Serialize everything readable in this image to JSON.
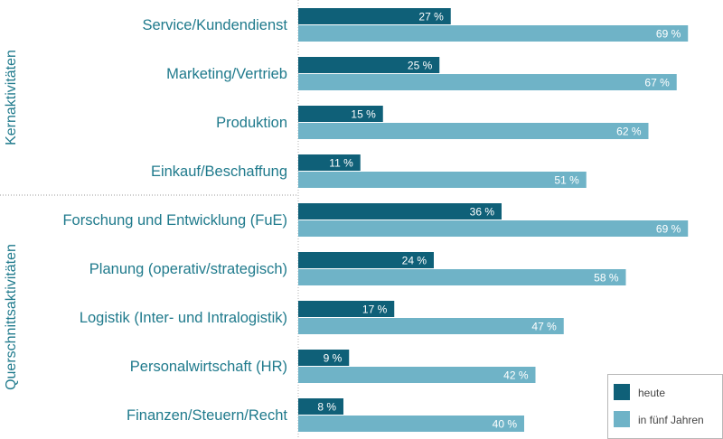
{
  "chart_data": {
    "type": "bar",
    "orientation": "horizontal",
    "groups": [
      {
        "label": "Kernaktivitäten",
        "categories": [
          "Service/Kundendienst",
          "Marketing/Vertrieb",
          "Produktion",
          "Einkauf/Beschaffung"
        ]
      },
      {
        "label": "Querschnittsaktivitäten",
        "categories": [
          "Forschung und Entwicklung (FuE)",
          "Planung (operativ/strategisch)",
          "Logistik (Inter- und Intralogistik)",
          "Personalwirtschaft (HR)",
          "Finanzen/Steuern/Recht"
        ]
      }
    ],
    "categories": [
      "Service/Kundendienst",
      "Marketing/Vertrieb",
      "Produktion",
      "Einkauf/Beschaffung",
      "Forschung und Entwicklung (FuE)",
      "Planung (operativ/strategisch)",
      "Logistik (Inter- und Intralogistik)",
      "Personalwirtschaft (HR)",
      "Finanzen/Steuern/Recht"
    ],
    "series": [
      {
        "name": "heute",
        "color": "#0f6078",
        "values": [
          27,
          25,
          15,
          11,
          36,
          24,
          17,
          9,
          8
        ]
      },
      {
        "name": "in fünf Jahren",
        "color": "#6fb3c7",
        "values": [
          69,
          67,
          62,
          51,
          69,
          58,
          47,
          42,
          40
        ]
      }
    ],
    "value_suffix": " %",
    "xlim": [
      0,
      100
    ],
    "title": "",
    "xlabel": "",
    "ylabel": "",
    "legend_position": "bottom-right",
    "label_color": "#1f7a8c",
    "grid": false
  }
}
